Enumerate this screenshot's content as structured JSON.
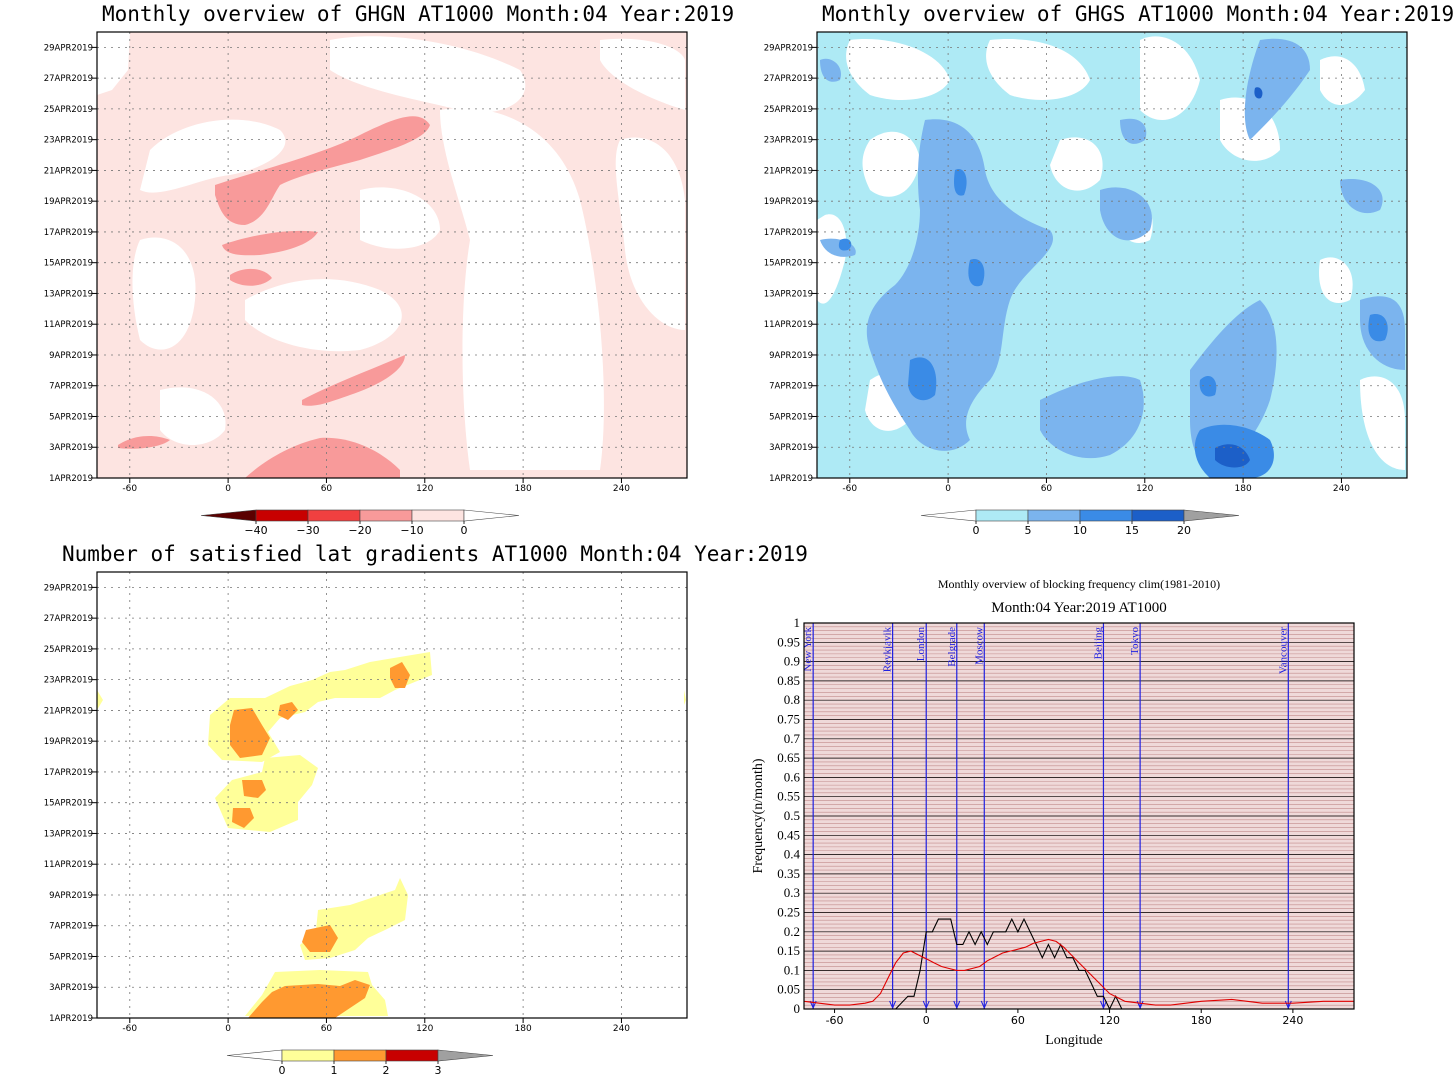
{
  "panels": {
    "ghgn": {
      "title": "Monthly overview of GHGN AT1000 Month:04 Year:2019"
    },
    "ghgs": {
      "title": "Monthly overview of GHGS AT1000 Month:04 Year:2019"
    },
    "lat": {
      "title": "Number of satisfied lat gradients AT1000 Month:04 Year:2019"
    },
    "freq": {
      "title": "Monthly overview of blocking frequency clim(1981-2010)",
      "subtitle": "Month:04 Year:2019  AT1000"
    }
  },
  "chart_data": [
    {
      "type": "heatmap",
      "title": "Monthly overview of GHGN AT1000 Month:04 Year:2019",
      "x_ticks": [
        "-60",
        "0",
        "60",
        "120",
        "180",
        "240"
      ],
      "y_ticks": [
        "1APR2019",
        "3APR2019",
        "5APR2019",
        "7APR2019",
        "9APR2019",
        "11APR2019",
        "13APR2019",
        "15APR2019",
        "17APR2019",
        "19APR2019",
        "21APR2019",
        "23APR2019",
        "25APR2019",
        "27APR2019",
        "29APR2019"
      ],
      "xlim": [
        -80,
        280
      ],
      "ylim": [
        1,
        30
      ],
      "grid": true,
      "colorbar": {
        "ticks": [
          "−40",
          "−30",
          "−20",
          "−10",
          "0"
        ],
        "colors": [
          "#5a0000",
          "#c80000",
          "#f04040",
          "#f89a9a",
          "#fde4e1",
          "#ffffff"
        ]
      }
    },
    {
      "type": "heatmap",
      "title": "Monthly overview of GHGS AT1000 Month:04 Year:2019",
      "x_ticks": [
        "-60",
        "0",
        "60",
        "120",
        "180",
        "240"
      ],
      "y_ticks": [
        "1APR2019",
        "3APR2019",
        "5APR2019",
        "7APR2019",
        "9APR2019",
        "11APR2019",
        "13APR2019",
        "15APR2019",
        "17APR2019",
        "19APR2019",
        "21APR2019",
        "23APR2019",
        "25APR2019",
        "27APR2019",
        "29APR2019"
      ],
      "xlim": [
        -80,
        280
      ],
      "ylim": [
        1,
        30
      ],
      "grid": true,
      "colorbar": {
        "ticks": [
          "0",
          "5",
          "10",
          "15",
          "20"
        ],
        "colors": [
          "#ffffff",
          "#aeeaf5",
          "#7bb4ee",
          "#3a8be6",
          "#1c5fc8",
          "#a0a0a0"
        ]
      }
    },
    {
      "type": "heatmap",
      "title": "Number of satisfied lat gradients AT1000 Month:04 Year:2019",
      "x_ticks": [
        "-60",
        "0",
        "60",
        "120",
        "180",
        "240"
      ],
      "y_ticks": [
        "1APR2019",
        "3APR2019",
        "5APR2019",
        "7APR2019",
        "9APR2019",
        "11APR2019",
        "13APR2019",
        "15APR2019",
        "17APR2019",
        "19APR2019",
        "21APR2019",
        "23APR2019",
        "25APR2019",
        "27APR2019",
        "29APR2019"
      ],
      "xlim": [
        -80,
        280
      ],
      "ylim": [
        1,
        30
      ],
      "grid": true,
      "colorbar": {
        "ticks": [
          "0",
          "1",
          "2",
          "3"
        ],
        "colors": [
          "#ffffff",
          "#ffff99",
          "#ff9930",
          "#c80000",
          "#a0a0a0"
        ]
      }
    },
    {
      "type": "line",
      "title": "Monthly overview of blocking frequency clim(1981-2010)",
      "subtitle": "Month:04 Year:2019  AT1000",
      "xlabel": "Longitude",
      "ylabel": "Frequency(n/month)",
      "xlim": [
        -80,
        280
      ],
      "ylim": [
        0,
        1
      ],
      "x_ticks": [
        "-60",
        "0",
        "60",
        "120",
        "180",
        "240"
      ],
      "y_ticks": [
        "0",
        "0.05",
        "0.1",
        "0.15",
        "0.2",
        "0.25",
        "0.3",
        "0.35",
        "0.4",
        "0.45",
        "0.5",
        "0.55",
        "0.6",
        "0.65",
        "0.7",
        "0.75",
        "0.8",
        "0.85",
        "0.9",
        "0.95",
        "1"
      ],
      "cities": [
        {
          "name": "New York",
          "lon": -74
        },
        {
          "name": "Reykjavik",
          "lon": -22
        },
        {
          "name": "London",
          "lon": 0
        },
        {
          "name": "Belgrade",
          "lon": 20
        },
        {
          "name": "Moscow",
          "lon": 38
        },
        {
          "name": "Beijing",
          "lon": 116
        },
        {
          "name": "Tokyo",
          "lon": 140
        },
        {
          "name": "Vancouver",
          "lon": 237
        }
      ],
      "series": [
        {
          "color": "#000000",
          "x": [
            -80,
            -70,
            -60,
            -50,
            -40,
            -30,
            -20,
            -12,
            -8,
            -4,
            0,
            4,
            8,
            12,
            16,
            20,
            24,
            28,
            32,
            36,
            40,
            44,
            48,
            52,
            56,
            60,
            64,
            68,
            72,
            76,
            80,
            84,
            88,
            92,
            96,
            100,
            104,
            108,
            112,
            116,
            120,
            124,
            128,
            140,
            160,
            180,
            200,
            220,
            240,
            260,
            280
          ],
          "values": [
            0,
            0,
            0,
            0,
            0,
            0,
            0,
            0.033,
            0.033,
            0.1,
            0.2,
            0.2,
            0.233,
            0.233,
            0.233,
            0.167,
            0.167,
            0.2,
            0.167,
            0.2,
            0.167,
            0.2,
            0.2,
            0.2,
            0.233,
            0.2,
            0.233,
            0.2,
            0.167,
            0.133,
            0.167,
            0.133,
            0.167,
            0.133,
            0.133,
            0.1,
            0.1,
            0.067,
            0.033,
            0.033,
            0,
            0.033,
            0,
            0,
            0,
            0,
            0,
            0,
            0,
            0,
            0
          ]
        },
        {
          "color": "#e00000",
          "x": [
            -80,
            -70,
            -60,
            -50,
            -40,
            -35,
            -30,
            -25,
            -20,
            -15,
            -10,
            -5,
            0,
            5,
            10,
            15,
            20,
            25,
            30,
            35,
            40,
            45,
            50,
            55,
            60,
            65,
            70,
            75,
            80,
            85,
            90,
            95,
            100,
            105,
            110,
            115,
            120,
            125,
            130,
            140,
            150,
            160,
            180,
            200,
            220,
            240,
            260,
            280
          ],
          "values": [
            0.02,
            0.015,
            0.01,
            0.01,
            0.015,
            0.02,
            0.04,
            0.08,
            0.12,
            0.145,
            0.15,
            0.14,
            0.13,
            0.12,
            0.11,
            0.105,
            0.1,
            0.1,
            0.105,
            0.11,
            0.125,
            0.135,
            0.145,
            0.15,
            0.155,
            0.16,
            0.17,
            0.175,
            0.18,
            0.175,
            0.16,
            0.14,
            0.12,
            0.1,
            0.08,
            0.06,
            0.04,
            0.03,
            0.02,
            0.015,
            0.01,
            0.01,
            0.02,
            0.025,
            0.015,
            0.015,
            0.02,
            0.02
          ]
        }
      ]
    }
  ]
}
